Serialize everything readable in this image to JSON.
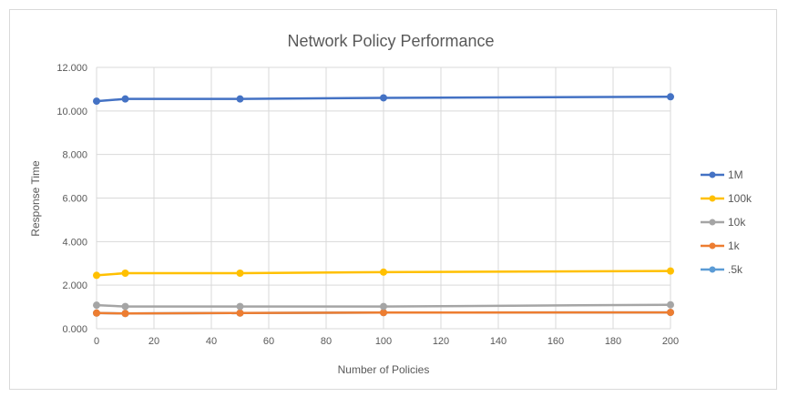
{
  "chart_data": {
    "type": "line",
    "title": "Network Policy Performance",
    "xlabel": "Number of Policies",
    "ylabel": "Response Time",
    "xlim": [
      0,
      200
    ],
    "ylim": [
      0,
      12
    ],
    "x_ticks": [
      "0",
      "20",
      "40",
      "60",
      "80",
      "100",
      "120",
      "140",
      "160",
      "180",
      "200"
    ],
    "y_ticks": [
      "0.000",
      "2.000",
      "4.000",
      "6.000",
      "8.000",
      "10.000",
      "12.000"
    ],
    "grid": true,
    "legend_position": "right",
    "series": [
      {
        "name": "1M",
        "color": "#4472c4",
        "x": [
          0,
          10,
          50,
          100,
          200
        ],
        "values": [
          10.45,
          10.55,
          10.55,
          10.6,
          10.65
        ]
      },
      {
        "name": "100k",
        "color": "#ffc000",
        "x": [
          0,
          10,
          50,
          100,
          200
        ],
        "values": [
          2.45,
          2.55,
          2.55,
          2.6,
          2.65
        ]
      },
      {
        "name": "10k",
        "color": "#a5a5a5",
        "x": [
          0,
          10,
          50,
          100,
          200
        ],
        "values": [
          1.08,
          1.02,
          1.02,
          1.02,
          1.1
        ]
      },
      {
        "name": "1k",
        "color": "#ed7d31",
        "x": [
          0,
          10,
          50,
          100,
          200
        ],
        "values": [
          0.72,
          0.7,
          0.72,
          0.74,
          0.75
        ]
      },
      {
        "name": ".5k",
        "color": "#5b9bd5",
        "x": [
          0,
          10,
          50,
          100,
          200
        ],
        "values": [
          0.72,
          0.7,
          0.72,
          0.74,
          0.75
        ]
      }
    ]
  }
}
